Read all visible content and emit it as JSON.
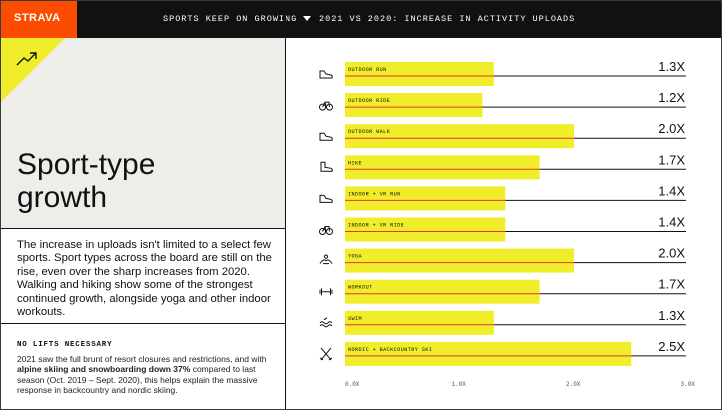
{
  "brand": {
    "logo": "STRAVA",
    "accent": "#fc4c02",
    "highlight": "#f0ee2a"
  },
  "header": {
    "left_title": "SPORTS KEEP ON GROWING",
    "right_title": "2021 VS 2020: INCREASE IN ACTIVITY UPLOADS"
  },
  "left": {
    "title": "Sport-type growth",
    "paragraph": "The increase in uploads isn't limited to a select few sports. Sport types across the board are still on the rise, even over the sharp increases from 2020. Walking and hiking show some of the strongest continued growth, alongside yoga and other indoor workouts.",
    "note_heading": "NO LIFTS NECESSARY",
    "note_pre": "2021 saw the full brunt of resort closures and restrictions, and with ",
    "note_bold": "alpine skiing and snowboarding down 37%",
    "note_post": " compared to last season (Oct. 2019 – Sept. 2020), this helps explain the massive response in backcountry and nordic skiing."
  },
  "chart_data": {
    "type": "bar",
    "orientation": "horizontal",
    "categories": [
      "OUTDOOR RUN",
      "OUTDOOR RIDE",
      "OUTDOOR WALK",
      "HIKE",
      "INDOOR + VR RUN",
      "INDOOR + VR RIDE",
      "YOGA",
      "WORKOUT",
      "SWIM",
      "NORDIC + BACKCOUNTRY SKI"
    ],
    "values": [
      1.3,
      1.2,
      2.0,
      1.7,
      1.4,
      1.4,
      2.0,
      1.7,
      1.3,
      2.5
    ],
    "value_labels": [
      "1.3X",
      "1.2X",
      "2.0X",
      "1.7X",
      "1.4X",
      "1.4X",
      "2.0X",
      "1.7X",
      "1.3X",
      "2.5X"
    ],
    "icons": [
      "shoe-icon",
      "bike-icon",
      "walk-shoe-icon",
      "hiking-boot-icon",
      "shoe-icon",
      "bike-icon",
      "yoga-icon",
      "dumbbell-icon",
      "swim-icon",
      "ski-icon"
    ],
    "xlim": [
      0,
      3.0
    ],
    "xticks": [
      "0.0X",
      "1.0X",
      "2.0X",
      "3.0X"
    ],
    "bar_color": "#f0ee2a",
    "marker_color": "#e8352b",
    "grid": false
  }
}
